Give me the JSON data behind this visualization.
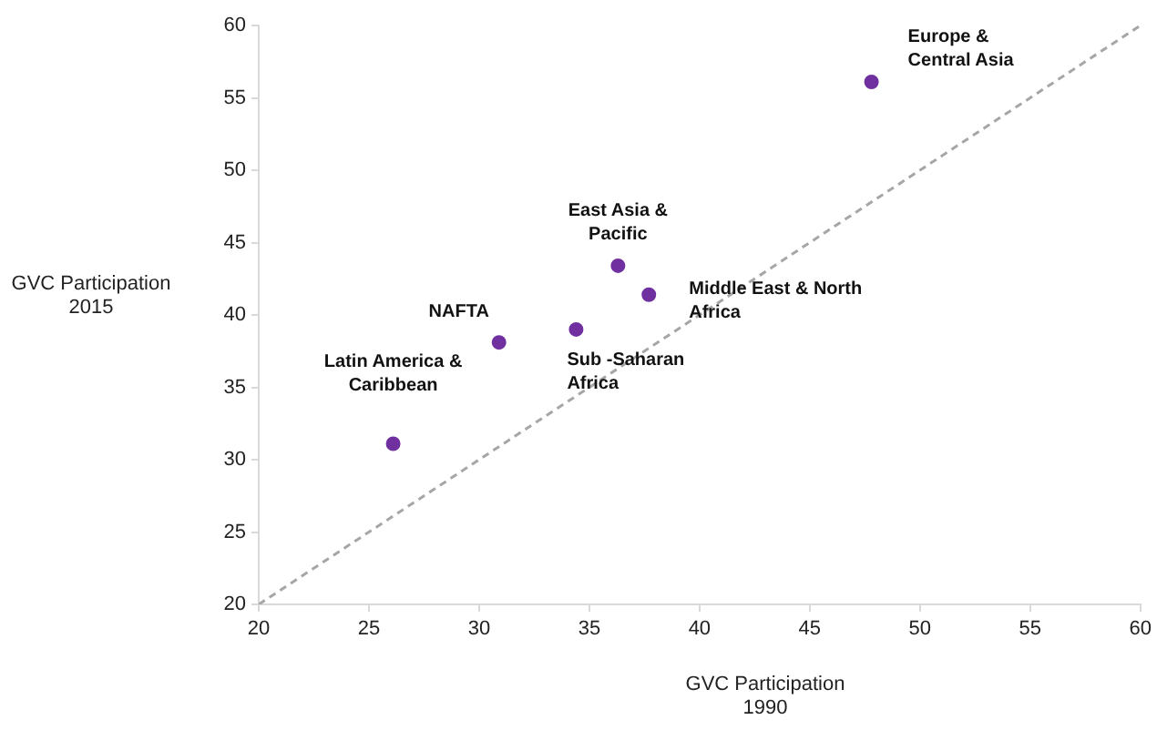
{
  "chart_data": {
    "type": "scatter",
    "xlabel": "GVC Participation\n1990",
    "ylabel": "GVC Participation\n2015",
    "xlim": [
      20,
      60
    ],
    "xticks": [
      20,
      25,
      30,
      35,
      40,
      45,
      50,
      55,
      60
    ],
    "ylim": [
      20,
      60
    ],
    "yticks": [
      20,
      25,
      30,
      35,
      40,
      45,
      50,
      55,
      60
    ],
    "grid": false,
    "legend": false,
    "marker": "circle",
    "series": [
      {
        "type": "scatter",
        "color": "#7030a0",
        "x": [
          47.8,
          36.3,
          37.7,
          34.4,
          30.9,
          26.1
        ],
        "values": [
          56.1,
          43.4,
          41.4,
          39.0,
          38.1,
          31.1
        ]
      },
      {
        "type": "line",
        "color": "#a6a6a6",
        "line_style": "dashed",
        "marker": "none",
        "x": [
          20,
          60
        ],
        "values": [
          20,
          60
        ]
      }
    ],
    "annotations": [
      {
        "text": "Europe &\nCentral Asia",
        "x": 47.8,
        "y": 56.1
      },
      {
        "text": "East Asia &\nPacific",
        "x": 36.3,
        "y": 43.4
      },
      {
        "text": "Middle East & North\nAfrica",
        "x": 37.7,
        "y": 41.4
      },
      {
        "text": "Sub -Saharan\nAfrica",
        "x": 34.4,
        "y": 39.0
      },
      {
        "text": "NAFTA",
        "x": 30.9,
        "y": 38.1
      },
      {
        "text": "Latin America &\nCaribbean",
        "x": 26.1,
        "y": 31.1
      }
    ]
  }
}
